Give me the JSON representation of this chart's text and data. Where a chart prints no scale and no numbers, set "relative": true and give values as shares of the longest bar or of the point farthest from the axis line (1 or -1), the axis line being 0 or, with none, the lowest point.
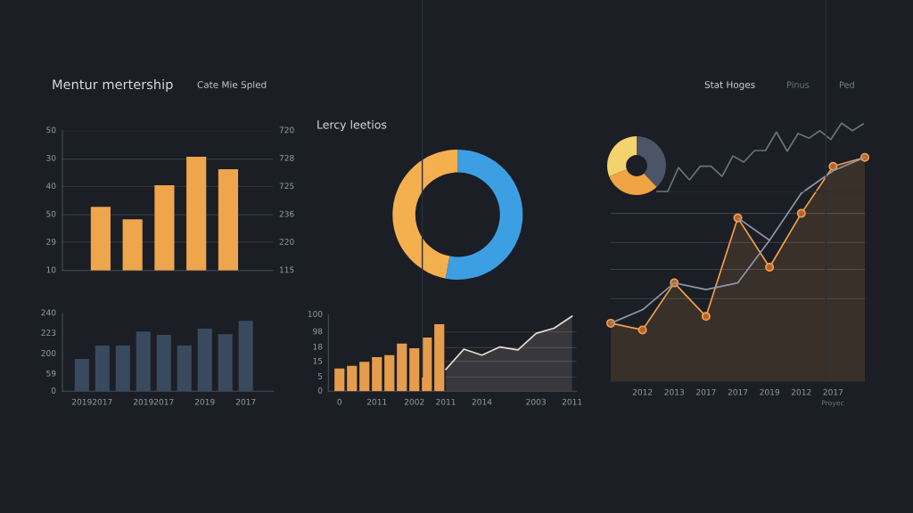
{
  "chart_data": [
    {
      "type": "bar",
      "relative": true,
      "title": "Mentur mertership",
      "annotations": [
        "Cate Mie Spled",
        "50",
        "30",
        "40",
        "50",
        "29",
        "10",
        "720",
        "728",
        "725",
        "236",
        "220",
        "115"
      ],
      "categories": [
        null,
        null,
        null,
        null,
        null
      ],
      "values": [
        0.56,
        0.45,
        0.75,
        1.0,
        0.89
      ],
      "color": "#eea54c",
      "ref_lines": [
        {
          "axis": "y",
          "value": 0.25,
          "color": "#353a44"
        },
        {
          "axis": "y",
          "value": 0.49,
          "color": "#353a44"
        },
        {
          "axis": "y",
          "value": 0.74,
          "color": "#353a44"
        },
        {
          "axis": "y",
          "value": 0.98,
          "color": "#353a44"
        },
        {
          "axis": "y",
          "value": 1.23,
          "color": "#353a44"
        }
      ]
    },
    {
      "type": "donut",
      "title": "Lercy leetios",
      "categories": [
        null,
        null
      ],
      "values": [
        53,
        47
      ],
      "colors": [
        "#3d9fe3",
        "#f4b04f"
      ]
    },
    {
      "type": "area",
      "relative": true,
      "annotations": [
        "Stat Hoges",
        "Pinus",
        "Ped",
        "Proyec"
      ],
      "categories": [
        null,
        "2012",
        "2013",
        "2017",
        "2017",
        "2019",
        "2012",
        "2017",
        null
      ],
      "ref_lines": [
        {
          "axis": "y",
          "value": 0.75,
          "color": "#3a404a"
        },
        {
          "axis": "y",
          "value": 0.62,
          "color": "#3a404a"
        },
        {
          "axis": "y",
          "value": 0.5,
          "color": "#3a404a"
        },
        {
          "axis": "y",
          "value": 0.37,
          "color": "#3a404a"
        }
      ],
      "series": [
        {
          "type": "area",
          "color": "#f0a04e",
          "marker": "circle",
          "values": [
            0.26,
            0.23,
            0.44,
            0.29,
            0.73,
            0.51,
            0.75,
            0.96,
            1.0
          ]
        },
        {
          "type": "line",
          "color": "#8d97a8",
          "values": [
            0.26,
            0.32,
            0.44,
            0.41,
            0.44,
            0.63,
            0.84,
            0.94,
            1.0
          ]
        },
        {
          "type": "line",
          "color": "#8d97a8",
          "values": [
            null,
            null,
            null,
            null,
            0.73,
            0.63,
            null,
            null,
            null
          ]
        }
      ]
    },
    {
      "type": "donut",
      "categories": [
        null,
        null,
        null
      ],
      "values": [
        38,
        31,
        31
      ],
      "colors": [
        "#4b5567",
        "#f0a444",
        "#f5d36c"
      ]
    },
    {
      "type": "line",
      "relative": true,
      "categories": [
        null,
        null,
        null,
        null,
        null,
        null,
        null,
        null,
        null,
        null,
        null,
        null,
        null,
        null,
        null,
        null,
        null,
        null,
        null,
        null
      ],
      "color": "#6c727c",
      "values": [
        0,
        0,
        0.35,
        0.17,
        0.37,
        0.37,
        0.22,
        0.52,
        0.43,
        0.6,
        0.6,
        0.87,
        0.59,
        0.85,
        0.78,
        0.89,
        0.76,
        1.0,
        0.89,
        0.99
      ]
    },
    {
      "type": "bar",
      "relative": true,
      "annotations": [
        "240",
        "223",
        "200",
        "59",
        "0"
      ],
      "categories": [
        "2019",
        "2017",
        null,
        "2019",
        "2017",
        null,
        "2019",
        null,
        "2017"
      ],
      "values": [
        0.46,
        0.65,
        0.65,
        0.85,
        0.8,
        0.65,
        0.89,
        0.81,
        1.0
      ],
      "color": "#3a4a5e"
    },
    {
      "type": "bar",
      "relative": true,
      "annotations": [
        "100",
        "98",
        "18",
        "15",
        "5",
        "0"
      ],
      "categories": [
        "0",
        null,
        null,
        "2011",
        null,
        null,
        "2002",
        null,
        null
      ],
      "values": [
        0.34,
        0.38,
        0.44,
        0.51,
        0.54,
        0.71,
        0.64,
        0.8,
        1.0
      ],
      "color": "#e59c4c"
    },
    {
      "type": "area",
      "relative": true,
      "categories": [
        "2011",
        null,
        "2014",
        null,
        null,
        "2003",
        null,
        "2011"
      ],
      "values": [
        0.29,
        0.56,
        0.48,
        0.59,
        0.55,
        0.77,
        0.84,
        1.0
      ],
      "color": "#e8dccf",
      "ref_lines": [
        {
          "axis": "y",
          "value": 0.79,
          "color": "#353a44"
        },
        {
          "axis": "y",
          "value": 0.58,
          "color": "#353a44"
        },
        {
          "axis": "y",
          "value": 0.4,
          "color": "#353a44"
        },
        {
          "axis": "y",
          "value": 0.19,
          "color": "#353a44"
        }
      ]
    }
  ]
}
